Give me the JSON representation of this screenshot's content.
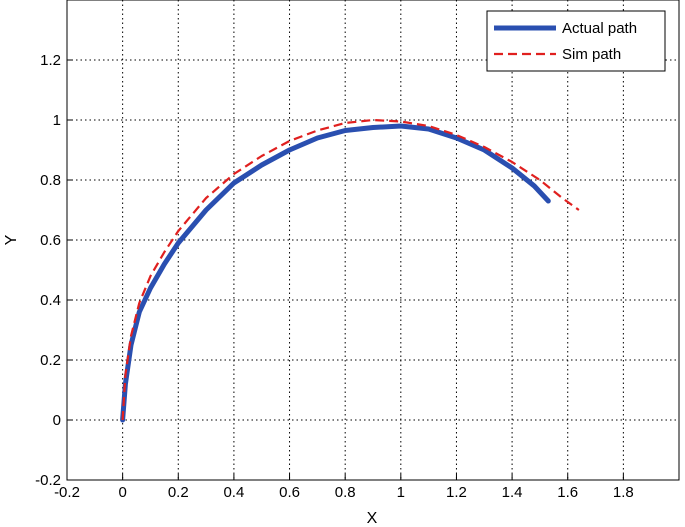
{
  "chart_data": {
    "type": "line",
    "title": "",
    "xlabel": "X",
    "ylabel": "Y",
    "xlim": [
      -0.2,
      2.0
    ],
    "ylim": [
      -0.2,
      1.4
    ],
    "xticks": [
      -0.2,
      0,
      0.2,
      0.4,
      0.6,
      0.8,
      1,
      1.2,
      1.4,
      1.6,
      1.8
    ],
    "xtick_labels": [
      "-0.2",
      "0",
      "0.2",
      "0.4",
      "0.6",
      "0.8",
      "1",
      "1.2",
      "1.4",
      "1.6",
      "1.8"
    ],
    "yticks": [
      -0.2,
      0,
      0.2,
      0.4,
      0.6,
      0.8,
      1,
      1.2
    ],
    "ytick_labels": [
      "-0.2",
      "0",
      "0.2",
      "0.4",
      "0.6",
      "0.8",
      "1",
      "1.2"
    ],
    "grid": true,
    "legend_position": "top-right",
    "series": [
      {
        "name": "Actual path",
        "color": "#2a4fb0",
        "style": "solid",
        "x": [
          0,
          0.01,
          0.03,
          0.06,
          0.1,
          0.15,
          0.2,
          0.3,
          0.4,
          0.5,
          0.6,
          0.7,
          0.8,
          0.9,
          1.0,
          1.1,
          1.2,
          1.3,
          1.4,
          1.48,
          1.53
        ],
        "y": [
          0.0,
          0.12,
          0.25,
          0.36,
          0.44,
          0.52,
          0.59,
          0.7,
          0.79,
          0.85,
          0.9,
          0.94,
          0.965,
          0.975,
          0.98,
          0.97,
          0.94,
          0.9,
          0.84,
          0.78,
          0.73
        ]
      },
      {
        "name": "Sim path",
        "color": "#e0201f",
        "style": "dashed",
        "x": [
          0,
          0.01,
          0.03,
          0.06,
          0.1,
          0.15,
          0.2,
          0.3,
          0.4,
          0.5,
          0.6,
          0.7,
          0.8,
          0.9,
          1.0,
          1.1,
          1.2,
          1.3,
          1.4,
          1.5,
          1.58,
          1.64
        ],
        "y": [
          0.0,
          0.15,
          0.28,
          0.39,
          0.48,
          0.56,
          0.63,
          0.74,
          0.82,
          0.88,
          0.93,
          0.965,
          0.99,
          1.0,
          0.995,
          0.98,
          0.95,
          0.91,
          0.86,
          0.8,
          0.74,
          0.7
        ]
      }
    ]
  }
}
